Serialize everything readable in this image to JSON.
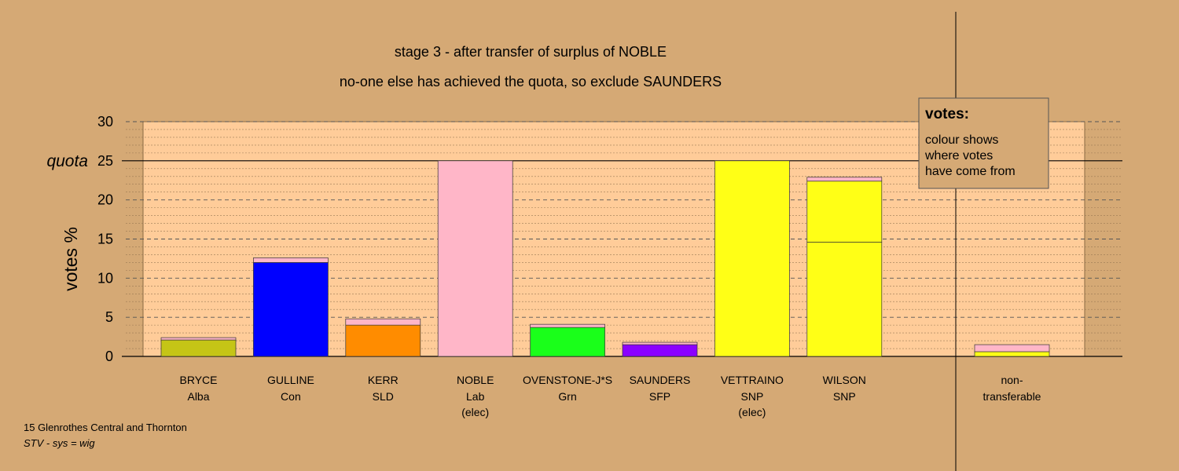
{
  "chart_data": {
    "type": "bar",
    "stacked": true,
    "title": "stage 3 - after transfer of surplus of NOBLE",
    "subtitle": "no-one else has achieved the quota, so exclude SAUNDERS",
    "ylabel": "votes %",
    "ylim": [
      0,
      30
    ],
    "yticks": [
      0,
      5,
      10,
      15,
      20,
      25,
      30
    ],
    "quota": 25,
    "quota_label": "quota",
    "grid": true,
    "candidates": [
      {
        "name": "BRYCE",
        "party": "Alba",
        "note": "",
        "segments": [
          {
            "value": 2.1,
            "color": "#c5c516"
          },
          {
            "value": 0.3,
            "color": "#ffb6c8"
          }
        ]
      },
      {
        "name": "GULLINE",
        "party": "Con",
        "note": "",
        "segments": [
          {
            "value": 12.0,
            "color": "#0000ff"
          },
          {
            "value": 0.6,
            "color": "#ffb6c8"
          }
        ]
      },
      {
        "name": "KERR",
        "party": "SLD",
        "note": "",
        "segments": [
          {
            "value": 4.0,
            "color": "#ff8c00"
          },
          {
            "value": 0.8,
            "color": "#ffb6c8"
          }
        ]
      },
      {
        "name": "NOBLE",
        "party": "Lab",
        "note": "(elec)",
        "segments": [
          {
            "value": 25.0,
            "color": "#ffb6c8"
          }
        ]
      },
      {
        "name": "OVENSTONE-J*S",
        "party": "Grn",
        "note": "",
        "segments": [
          {
            "value": 3.7,
            "color": "#1aff1a"
          },
          {
            "value": 0.4,
            "color": "#ffb6c8"
          }
        ]
      },
      {
        "name": "SAUNDERS",
        "party": "SFP",
        "note": "",
        "segments": [
          {
            "value": 1.5,
            "color": "#8b00ff"
          },
          {
            "value": 0.3,
            "color": "#ffb6c8"
          }
        ]
      },
      {
        "name": "VETTRAINO",
        "party": "SNP",
        "note": "(elec)",
        "segments": [
          {
            "value": 25.0,
            "color": "#ffff16"
          }
        ]
      },
      {
        "name": "WILSON",
        "party": "SNP",
        "note": "",
        "segments": [
          {
            "value": 14.6,
            "color": "#ffff16"
          },
          {
            "value": 7.8,
            "color": "#ffff16"
          },
          {
            "value": 0.5,
            "color": "#ffb6c8"
          }
        ]
      }
    ],
    "nontransferable": {
      "label_line1": "non-",
      "label_line2": "transferable",
      "segments": [
        {
          "value": 0.6,
          "color": "#ffff16"
        },
        {
          "value": 0.9,
          "color": "#ffb6c8"
        }
      ]
    },
    "legend": {
      "title": "votes:",
      "lines": [
        "colour shows",
        "where votes",
        "have come from"
      ],
      "placement": "top-right"
    }
  },
  "footer": {
    "line1": "15 Glenrothes Central and Thornton",
    "line2": "STV - sys = wig"
  },
  "colors": {
    "background": "#d5a975",
    "plot_area": "#ffcc99",
    "plot_border": "#b5884f"
  }
}
